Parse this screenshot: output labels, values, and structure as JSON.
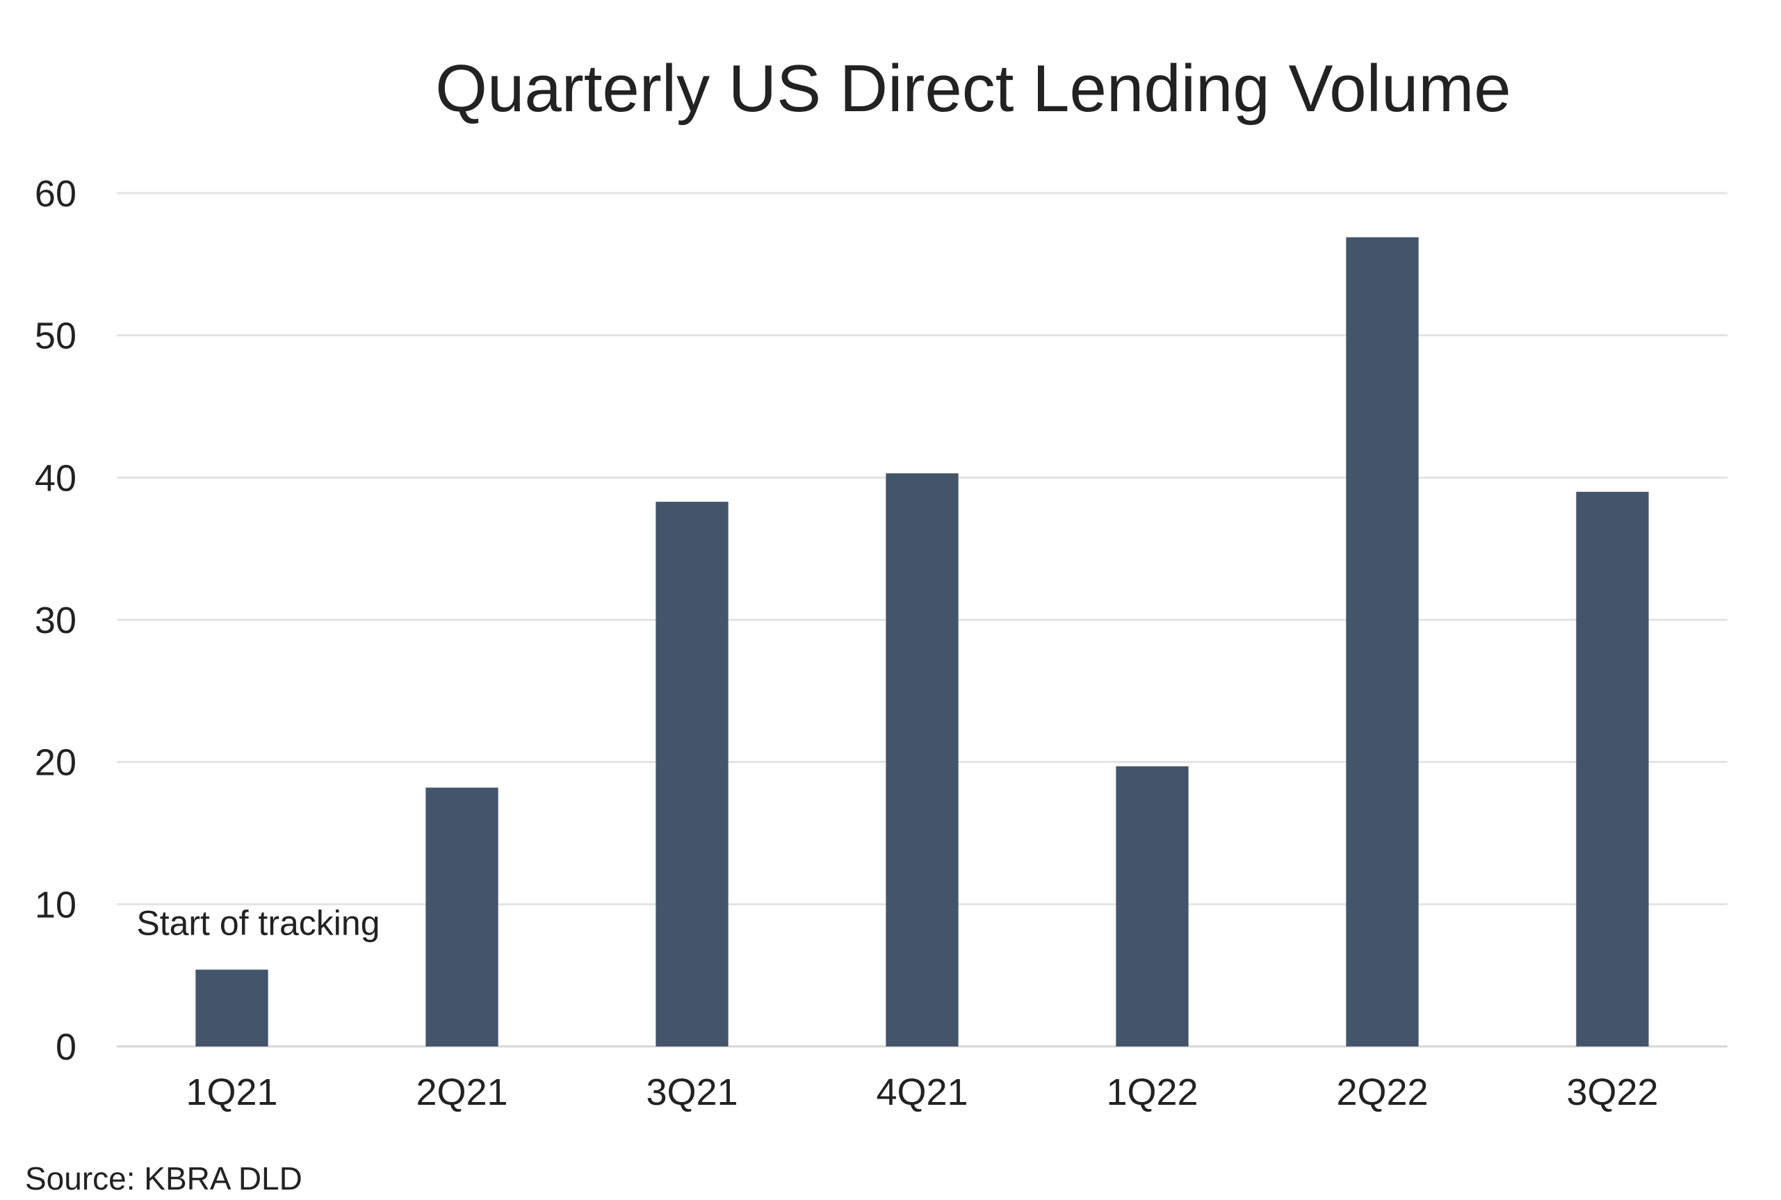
{
  "chart_data": {
    "type": "bar",
    "title": "Quarterly US Direct Lending Volume",
    "xlabel": "",
    "ylabel": "",
    "categories": [
      "1Q21",
      "2Q21",
      "3Q21",
      "4Q21",
      "1Q22",
      "2Q22",
      "3Q22"
    ],
    "values": [
      5.4,
      18.2,
      38.3,
      40.3,
      19.7,
      56.9,
      39.0
    ],
    "ylim": [
      0,
      60
    ],
    "yticks": [
      "0",
      "10",
      "20",
      "30",
      "40",
      "50",
      "60"
    ],
    "grid": true,
    "legend": "none",
    "bar_color": "#44546a",
    "annotations": [
      {
        "text": "Start of tracking",
        "category": "1Q21"
      }
    ]
  },
  "footer": {
    "source": "Source: KBRA DLD"
  }
}
